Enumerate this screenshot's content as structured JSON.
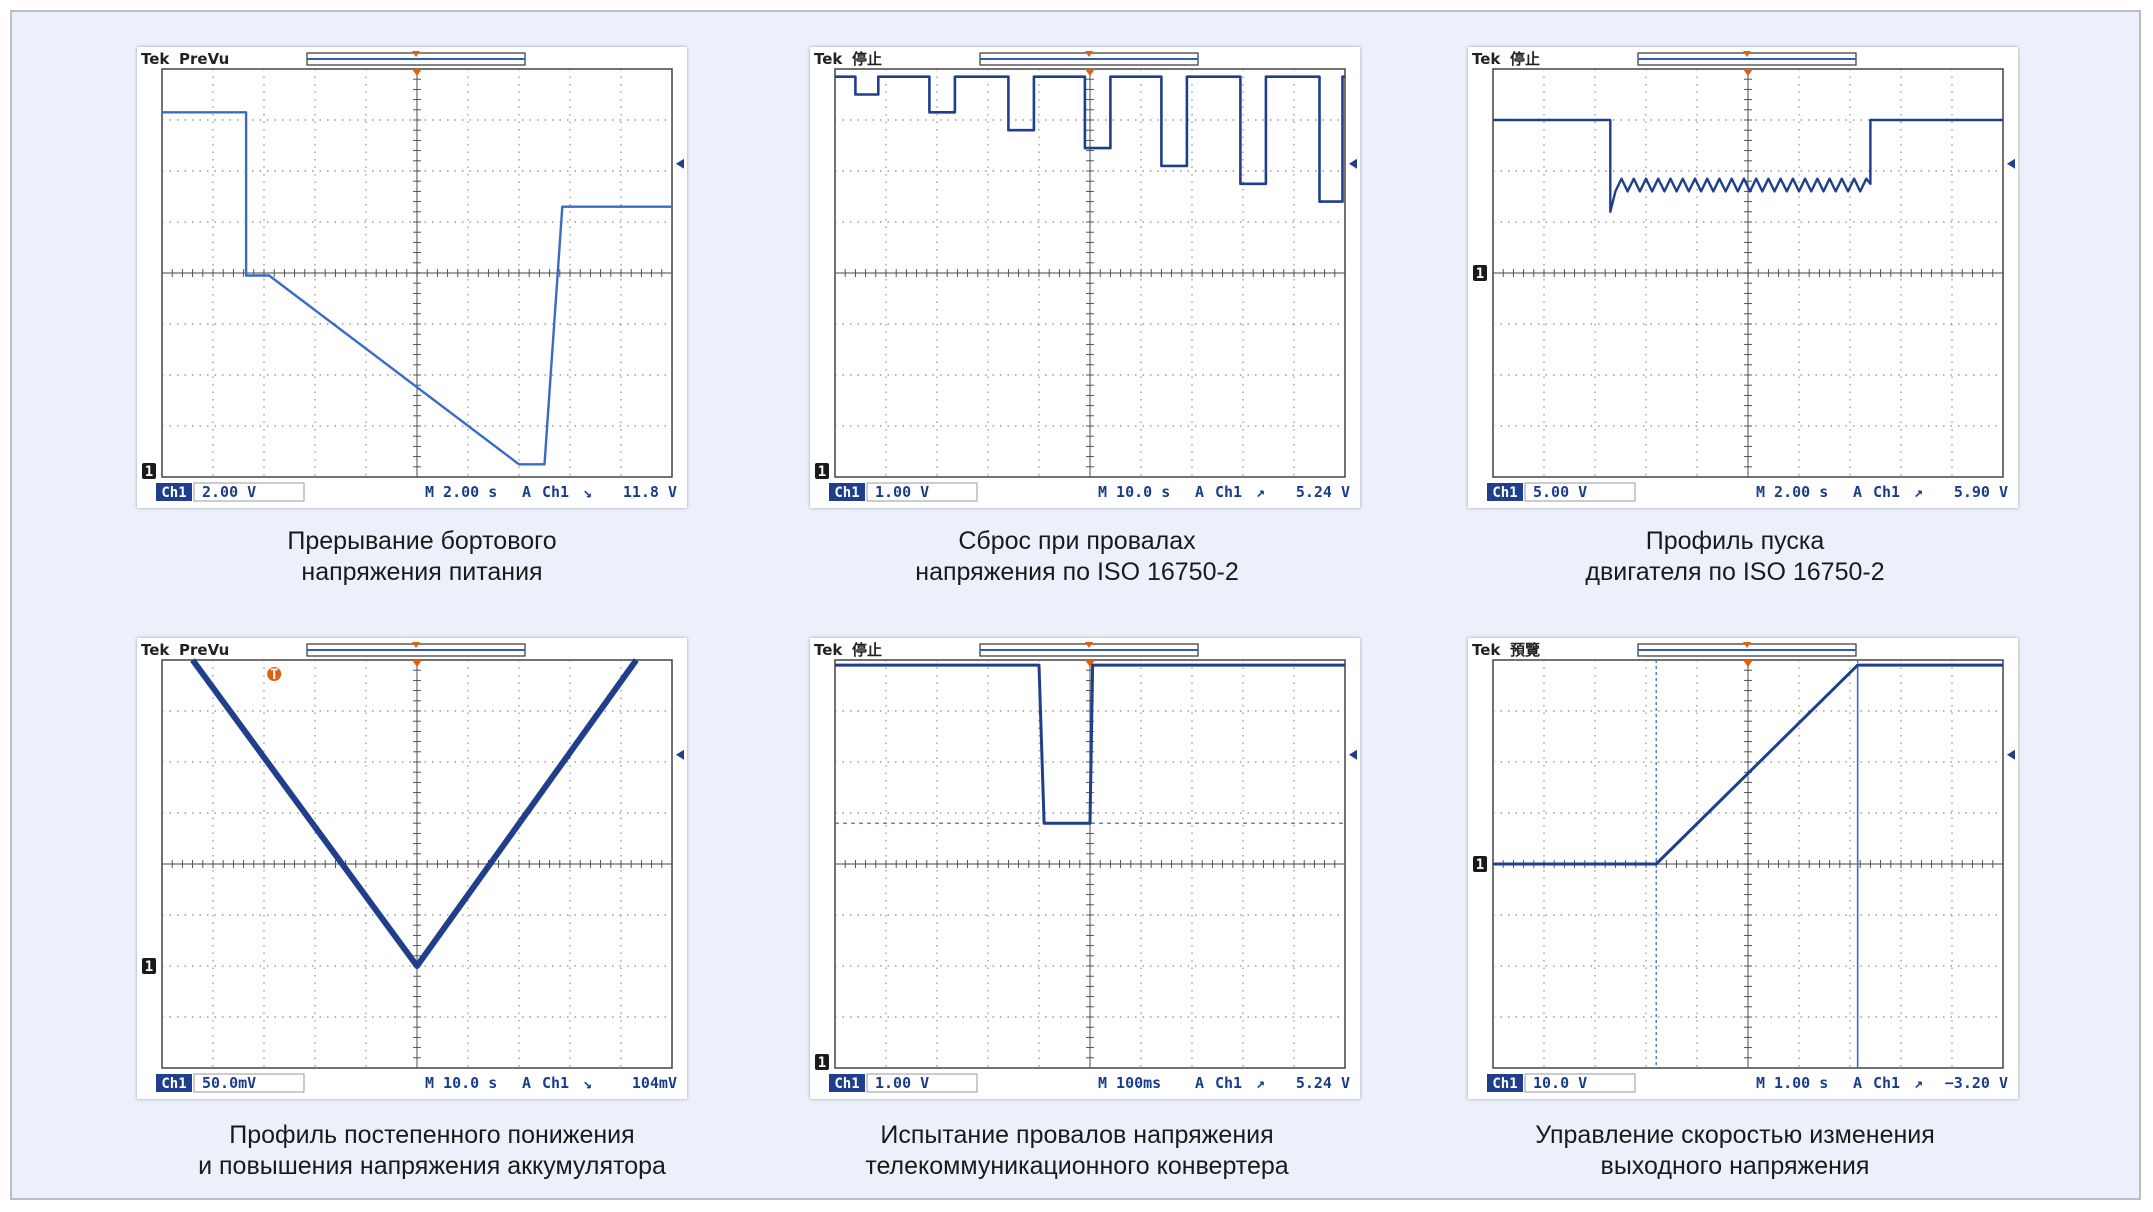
{
  "colors": {
    "background": "#ebf0fa",
    "trace": "#1f3f8c",
    "trace_light": "#5b8fd6",
    "grid": "#6b6b6b",
    "status_text": "#1a3d8a",
    "marker_orange": "#e06010"
  },
  "panels": [
    {
      "caption": [
        "Прерывание бортового",
        "напряжения питания"
      ],
      "hdr_brand": "Tek",
      "hdr_mode": "PreVu",
      "ch_label": "Ch1",
      "volts_div": "2.00 V",
      "time_div": "M 2.00 s",
      "trig_mode": "A",
      "trig_ch": "Ch1",
      "trig_slope": "falling",
      "trig_level": "11.8 V",
      "ground_marker": "1",
      "extra_marker": "",
      "chart_data": {
        "type": "line",
        "x_range": [
          0,
          10
        ],
        "y_range": [
          0,
          8
        ],
        "series": [
          {
            "points": [
              [
                0,
                7.15
              ],
              [
                1.65,
                7.15
              ],
              [
                1.65,
                3.95
              ],
              [
                2.1,
                3.95
              ],
              [
                7.0,
                0.25
              ],
              [
                7.5,
                0.25
              ],
              [
                7.85,
                5.3
              ],
              [
                10,
                5.3
              ]
            ],
            "color": "#3a6bc4",
            "width": 2.4
          }
        ]
      }
    },
    {
      "caption": [
        "Сброс при провалах",
        "напряжения по ISO 16750-2"
      ],
      "hdr_brand": "Tek",
      "hdr_mode": "停止",
      "ch_label": "Ch1",
      "volts_div": "1.00 V",
      "time_div": "M 10.0 s",
      "trig_mode": "A",
      "trig_ch": "Ch1",
      "trig_slope": "rising",
      "trig_level": "5.24 V",
      "ground_marker": "1",
      "extra_marker": "",
      "chart_data": {
        "type": "line",
        "x_range": [
          0,
          10
        ],
        "y_range": [
          0,
          8
        ],
        "series": [
          {
            "points": [
              [
                0,
                7.85
              ],
              [
                0.4,
                7.85
              ],
              [
                0.4,
                7.5
              ],
              [
                0.85,
                7.5
              ],
              [
                0.85,
                7.85
              ],
              [
                1.85,
                7.85
              ],
              [
                1.85,
                7.15
              ],
              [
                2.35,
                7.15
              ],
              [
                2.35,
                7.85
              ],
              [
                3.4,
                7.85
              ],
              [
                3.4,
                6.8
              ],
              [
                3.9,
                6.8
              ],
              [
                3.9,
                7.85
              ],
              [
                4.9,
                7.85
              ],
              [
                4.9,
                6.45
              ],
              [
                5.4,
                6.45
              ],
              [
                5.4,
                7.85
              ],
              [
                6.4,
                7.85
              ],
              [
                6.4,
                6.1
              ],
              [
                6.9,
                6.1
              ],
              [
                6.9,
                7.85
              ],
              [
                7.95,
                7.85
              ],
              [
                7.95,
                5.75
              ],
              [
                8.45,
                5.75
              ],
              [
                8.45,
                7.85
              ],
              [
                9.5,
                7.85
              ],
              [
                9.5,
                5.4
              ],
              [
                9.95,
                5.4
              ],
              [
                9.95,
                7.85
              ],
              [
                10,
                7.85
              ]
            ],
            "color": "#1f3f8c",
            "width": 2.6
          }
        ]
      }
    },
    {
      "caption": [
        "Профиль пуска",
        "двигателя по ISO 16750-2"
      ],
      "hdr_brand": "Tek",
      "hdr_mode": "停止",
      "ch_label": "Ch1",
      "volts_div": "5.00 V",
      "time_div": "M 2.00 s",
      "trig_mode": "A",
      "trig_ch": "Ch1",
      "trig_slope": "rising",
      "trig_level": "5.90 V",
      "ground_marker": "1",
      "extra_marker": "",
      "chart_data": {
        "type": "line",
        "x_range": [
          0,
          10
        ],
        "y_range": [
          0,
          8
        ],
        "series": [
          {
            "points": [
              [
                0,
                7.0
              ],
              [
                2.3,
                7.0
              ],
              [
                2.3,
                5.2
              ],
              [
                2.4,
                5.6
              ],
              [
                2.52,
                5.85
              ],
              [
                2.64,
                5.6
              ],
              [
                2.76,
                5.85
              ],
              [
                2.88,
                5.6
              ],
              [
                3.0,
                5.85
              ],
              [
                3.12,
                5.6
              ],
              [
                3.24,
                5.85
              ],
              [
                3.36,
                5.6
              ],
              [
                3.48,
                5.85
              ],
              [
                3.6,
                5.6
              ],
              [
                3.72,
                5.85
              ],
              [
                3.84,
                5.6
              ],
              [
                3.96,
                5.85
              ],
              [
                4.08,
                5.6
              ],
              [
                4.2,
                5.85
              ],
              [
                4.32,
                5.6
              ],
              [
                4.44,
                5.85
              ],
              [
                4.56,
                5.6
              ],
              [
                4.68,
                5.85
              ],
              [
                4.8,
                5.6
              ],
              [
                4.92,
                5.85
              ],
              [
                5.04,
                5.6
              ],
              [
                5.16,
                5.85
              ],
              [
                5.28,
                5.6
              ],
              [
                5.4,
                5.85
              ],
              [
                5.52,
                5.6
              ],
              [
                5.64,
                5.85
              ],
              [
                5.76,
                5.6
              ],
              [
                5.88,
                5.85
              ],
              [
                6.0,
                5.6
              ],
              [
                6.12,
                5.85
              ],
              [
                6.24,
                5.6
              ],
              [
                6.36,
                5.85
              ],
              [
                6.48,
                5.6
              ],
              [
                6.6,
                5.85
              ],
              [
                6.72,
                5.6
              ],
              [
                6.84,
                5.85
              ],
              [
                6.96,
                5.6
              ],
              [
                7.08,
                5.85
              ],
              [
                7.2,
                5.6
              ],
              [
                7.32,
                5.85
              ],
              [
                7.4,
                5.75
              ],
              [
                7.4,
                7.0
              ],
              [
                10,
                7.0
              ]
            ],
            "color": "#1f3f8c",
            "width": 2.4
          }
        ]
      }
    },
    {
      "caption": [
        "Профиль постепенного понижения",
        "и повышения напряжения аккумулятора"
      ],
      "hdr_brand": "Tek",
      "hdr_mode": "PreVu",
      "ch_label": "Ch1",
      "volts_div": "50.0mV",
      "time_div": "M 10.0 s",
      "trig_mode": "A",
      "trig_ch": "Ch1",
      "trig_slope": "falling",
      "trig_level": "104mV",
      "ground_marker": "1",
      "extra_marker": "T",
      "chart_data": {
        "type": "line",
        "x_range": [
          0,
          10
        ],
        "y_range": [
          0,
          8
        ],
        "series": [
          {
            "points": [
              [
                0.6,
                8.0
              ],
              [
                5.0,
                2.0
              ],
              [
                9.3,
                8.0
              ]
            ],
            "color": "#1f3f8c",
            "width": 6
          }
        ]
      }
    },
    {
      "caption": [
        "Испытание провалов напряжения",
        "телекоммуникационного конвертера"
      ],
      "hdr_brand": "Tek",
      "hdr_mode": "停止",
      "ch_label": "Ch1",
      "volts_div": "1.00 V",
      "time_div": "M 100ms",
      "trig_mode": "A",
      "trig_ch": "Ch1",
      "trig_slope": "rising",
      "trig_level": "5.24 V",
      "ground_marker": "1",
      "extra_marker": "",
      "chart_data": {
        "type": "line",
        "x_range": [
          0,
          10
        ],
        "y_range": [
          0,
          8
        ],
        "series": [
          {
            "points": [
              [
                0,
                7.9
              ],
              [
                4.0,
                7.9
              ],
              [
                4.1,
                4.8
              ],
              [
                5.0,
                4.8
              ],
              [
                5.05,
                7.9
              ],
              [
                10,
                7.9
              ]
            ],
            "color": "#1f3f8c",
            "width": 3
          }
        ],
        "reference_level": 4.8
      }
    },
    {
      "caption": [
        "Управление скоростью изменения",
        "выходного напряжения"
      ],
      "hdr_brand": "Tek",
      "hdr_mode": "預覽",
      "ch_label": "Ch1",
      "volts_div": "10.0 V",
      "time_div": "M 1.00 s",
      "trig_mode": "A",
      "trig_ch": "Ch1",
      "trig_slope": "rising",
      "trig_level": "−3.20 V",
      "ground_marker": "1",
      "extra_marker": "",
      "chart_data": {
        "type": "line",
        "x_range": [
          0,
          10
        ],
        "y_range": [
          0,
          8
        ],
        "series": [
          {
            "points": [
              [
                0,
                4.0
              ],
              [
                3.2,
                4.0
              ],
              [
                7.15,
                7.9
              ],
              [
                10,
                7.9
              ]
            ],
            "color": "#1f3f8c",
            "width": 3
          }
        ],
        "cursor_x": [
          3.2,
          7.15
        ]
      }
    }
  ]
}
